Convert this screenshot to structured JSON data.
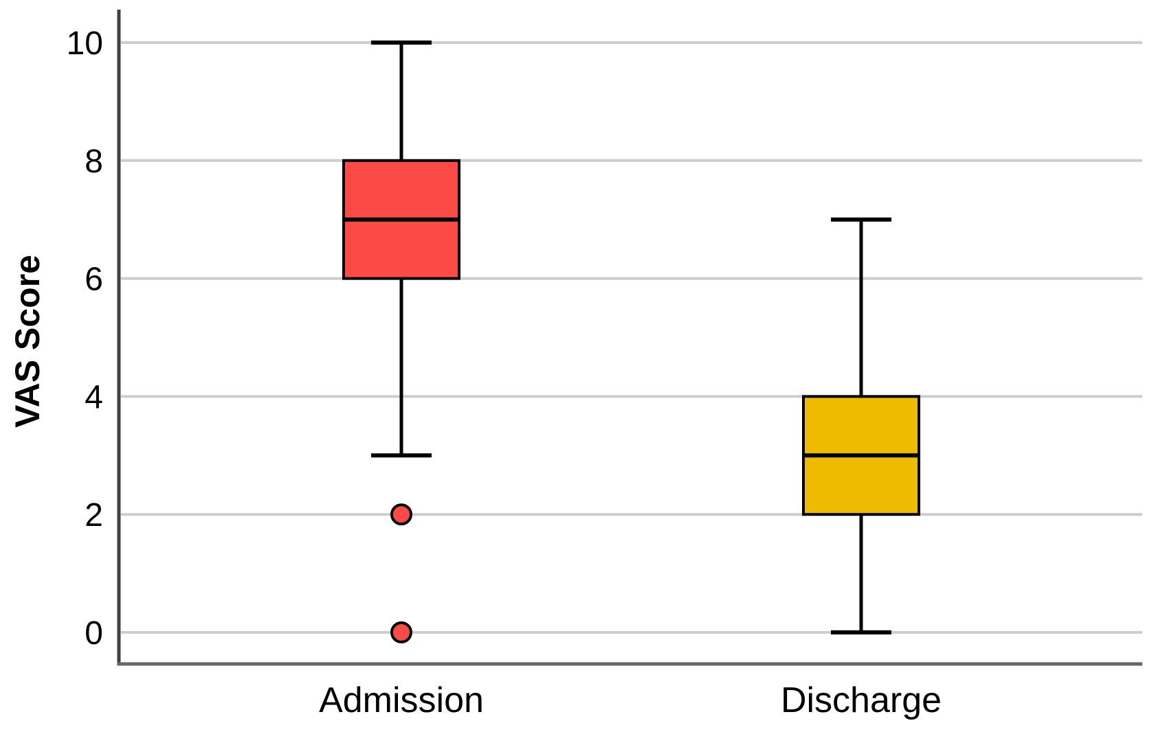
{
  "chart_data": {
    "type": "boxplot",
    "title": "",
    "xlabel": "",
    "ylabel": "VAS Score",
    "ylim": [
      0,
      10
    ],
    "yticks": [
      0,
      2,
      4,
      6,
      8,
      10
    ],
    "grid": true,
    "legend": false,
    "categories": [
      "Admission",
      "Discharge"
    ],
    "series": [
      {
        "name": "Admission",
        "color": "#FC4B47",
        "whisker_low": 3,
        "q1": 6,
        "median": 7,
        "q3": 8,
        "whisker_high": 10,
        "outliers": [
          2,
          0
        ]
      },
      {
        "name": "Discharge",
        "color": "#EEBB00",
        "whisker_low": 0,
        "q1": 2,
        "median": 3,
        "q3": 4,
        "whisker_high": 7,
        "outliers": []
      }
    ],
    "colors": {
      "gridline": "#CDCDCD",
      "y_axis_line": "#404040",
      "x_axis_line": "#666666",
      "box_stroke": "#000000",
      "text": "#000000"
    }
  }
}
